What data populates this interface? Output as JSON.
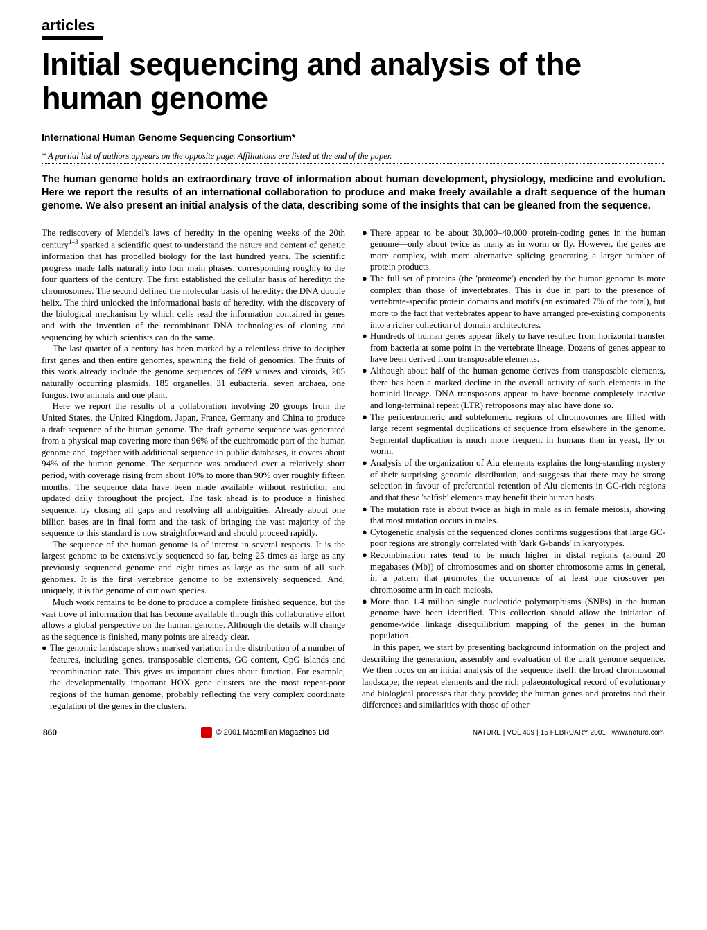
{
  "section_label": "articles",
  "title": "Initial sequencing and analysis of the human genome",
  "authors": "International Human Genome Sequencing Consortium*",
  "author_note": "* A partial list of authors appears on the opposite page. Affiliations are listed at the end of the paper.",
  "abstract": "The human genome holds an extraordinary trove of information about human development, physiology, medicine and evolution. Here we report the results of an international collaboration to produce and make freely available a draft sequence of the human genome. We also present an initial analysis of the data, describing some of the insights that can be gleaned from the sequence.",
  "body": {
    "p1a": "The rediscovery of Mendel's laws of heredity in the opening weeks of the 20th century",
    "p1sup": "1–3",
    "p1b": " sparked a scientific quest to understand the nature and content of genetic information that has propelled biology for the last hundred years. The scientific progress made falls naturally into four main phases, corresponding roughly to the four quarters of the century. The first established the cellular basis of heredity: the chromosomes. The second defined the molecular basis of heredity: the DNA double helix. The third unlocked the informational basis of heredity, with the discovery of the biological mechanism by which cells read the information contained in genes and with the invention of the recombinant DNA technologies of cloning and sequencing by which scientists can do the same.",
    "p2": "The last quarter of a century has been marked by a relentless drive to decipher first genes and then entire genomes, spawning the field of genomics. The fruits of this work already include the genome sequences of 599 viruses and viroids, 205 naturally occurring plasmids, 185 organelles, 31 eubacteria, seven archaea, one fungus, two animals and one plant.",
    "p3": "Here we report the results of a collaboration involving 20 groups from the United States, the United Kingdom, Japan, France, Germany and China to produce a draft sequence of the human genome. The draft genome sequence was generated from a physical map covering more than 96% of the euchromatic part of the human genome and, together with additional sequence in public databases, it covers about 94% of the human genome. The sequence was produced over a relatively short period, with coverage rising from about 10% to more than 90% over roughly fifteen months. The sequence data have been made available without restriction and updated daily throughout the project. The task ahead is to produce a finished sequence, by closing all gaps and resolving all ambiguities. Already about one billion bases are in final form and the task of bringing the vast majority of the sequence to this standard is now straightforward and should proceed rapidly.",
    "p4": "The sequence of the human genome is of interest in several respects. It is the largest genome to be extensively sequenced so far, being 25 times as large as any previously sequenced genome and eight times as large as the sum of all such genomes. It is the first vertebrate genome to be extensively sequenced. And, uniquely, it is the genome of our own species.",
    "p5": "Much work remains to be done to produce a complete finished sequence, but the vast trove of information that has become available through this collaborative effort allows a global perspective on the human genome. Although the details will change as the sequence is finished, many points are already clear.",
    "b1": "The genomic landscape shows marked variation in the distribution of a number of features, including genes, transposable elements, GC content, CpG islands and recombination rate. This gives us important clues about function. For example, the developmentally important HOX gene clusters are the most repeat-poor regions of the human genome, probably reflecting the very complex coordinate regulation of the genes in the clusters.",
    "b2": "There appear to be about 30,000–40,000 protein-coding genes in the human genome—only about twice as many as in worm or fly. However, the genes are more complex, with more alternative splicing generating a larger number of protein products.",
    "b3": "The full set of proteins (the 'proteome') encoded by the human genome is more complex than those of invertebrates. This is due in part to the presence of vertebrate-specific protein domains and motifs (an estimated 7% of the total), but more to the fact that vertebrates appear to have arranged pre-existing components into a richer collection of domain architectures.",
    "b4": "Hundreds of human genes appear likely to have resulted from horizontal transfer from bacteria at some point in the vertebrate lineage. Dozens of genes appear to have been derived from transposable elements.",
    "b5": "Although about half of the human genome derives from transposable elements, there has been a marked decline in the overall activity of such elements in the hominid lineage. DNA transposons appear to have become completely inactive and long-terminal repeat (LTR) retroposons may also have done so.",
    "b6": "The pericentromeric and subtelomeric regions of chromosomes are filled with large recent segmental duplications of sequence from elsewhere in the genome. Segmental duplication is much more frequent in humans than in yeast, fly or worm.",
    "b7": "Analysis of the organization of Alu elements explains the long-standing mystery of their surprising genomic distribution, and suggests that there may be strong selection in favour of preferential retention of Alu elements in GC-rich regions and that these 'selfish' elements may benefit their human hosts.",
    "b8": "The mutation rate is about twice as high in male as in female meiosis, showing that most mutation occurs in males.",
    "b9": "Cytogenetic analysis of the sequenced clones confirms suggestions that large GC-poor regions are strongly correlated with 'dark G-bands' in karyotypes.",
    "b10": "Recombination rates tend to be much higher in distal regions (around 20 megabases (Mb)) of chromosomes and on shorter chromosome arms in general, in a pattern that promotes the occurrence of at least one crossover per chromosome arm in each meiosis.",
    "b11": "More than 1.4 million single nucleotide polymorphisms (SNPs) in the human genome have been identified. This collection should allow the initiation of genome-wide linkage disequilibrium mapping of the genes in the human population.",
    "p6": "In this paper, we start by presenting background information on the project and describing the generation, assembly and evaluation of the draft genome sequence. We then focus on an initial analysis of the sequence itself: the broad chromosomal landscape; the repeat elements and the rich palaeontological record of evolutionary and biological processes that they provide; the human genes and proteins and their differences and similarities with those of other"
  },
  "footer": {
    "page": "860",
    "copyright": "© 2001 Macmillan Magazines Ltd",
    "citation": "NATURE | VOL 409 | 15 FEBRUARY 2001 | www.nature.com"
  },
  "colors": {
    "text": "#000000",
    "bg": "#ffffff",
    "logo": "#d40000"
  }
}
